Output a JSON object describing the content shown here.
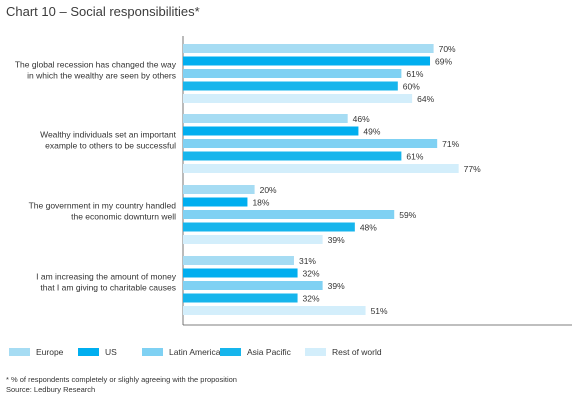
{
  "title": "Chart 10 – Social responsibilities*",
  "chart_data": {
    "type": "bar",
    "orientation": "horizontal",
    "title": "Chart 10 – Social responsibilities*",
    "categories": [
      [
        "The global recession has changed the way",
        "in which the wealthy are seen by others"
      ],
      [
        "Wealthy individuals set an important",
        "example to others to be successful"
      ],
      [
        "The government in my country handled",
        "the economic downturn well"
      ],
      [
        "I am increasing the amount of money",
        "that I am giving to charitable causes"
      ]
    ],
    "series": [
      {
        "name": "Europe",
        "color": "#a6dcf3",
        "values": [
          70,
          46,
          20,
          31
        ]
      },
      {
        "name": "US",
        "color": "#00aeef",
        "values": [
          69,
          49,
          18,
          32
        ]
      },
      {
        "name": "Latin America",
        "color": "#7fd1f3",
        "values": [
          61,
          71,
          59,
          39
        ]
      },
      {
        "name": "Asia Pacific",
        "color": "#16b5ec",
        "values": [
          60,
          61,
          48,
          32
        ]
      },
      {
        "name": "Rest of world",
        "color": "#d3eefb",
        "values": [
          64,
          77,
          39,
          51
        ]
      }
    ],
    "value_suffix": "%",
    "xlim": [
      0,
      100
    ],
    "grid": false,
    "legend_position": "bottom"
  },
  "notes": {
    "footnote": "* % of respondents completely or slighly agreeing with the proposition",
    "source": "Source: Ledbury Research"
  }
}
